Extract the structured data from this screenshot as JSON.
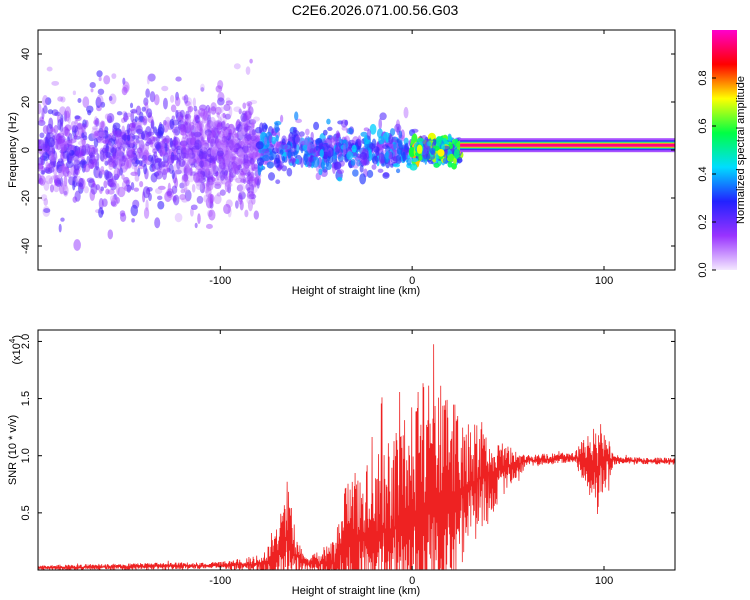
{
  "title": "C2E6.2026.071.00.56.G03",
  "chart_data": [
    {
      "type": "heatmap",
      "xlabel": "Height of straight line (km)",
      "ylabel": "Frequency (Hz)",
      "xlim": [
        -195,
        137
      ],
      "ylim": [
        -50,
        50
      ],
      "xticks": [
        -100,
        0,
        100
      ],
      "xtick_labels": [
        "-100",
        "0",
        "100"
      ],
      "yticks": [
        -40,
        -20,
        0,
        20,
        40
      ],
      "ytick_labels": [
        "-40",
        "-20",
        "0",
        "20",
        "40"
      ],
      "colorbar": {
        "label": "Normalized spectral amplitude",
        "range": [
          0,
          1
        ],
        "ticks": [
          0.0,
          0.2,
          0.4,
          0.6,
          0.8
        ],
        "tick_labels": [
          "0.0",
          "0.2",
          "0.4",
          "0.6",
          "0.8"
        ],
        "colors": [
          "#f4e8ff",
          "#9933ff",
          "#2222ff",
          "#00ddff",
          "#00ff44",
          "#ffff00",
          "#ff0000",
          "#ff00cc"
        ]
      },
      "regions": [
        {
          "x": [
            -195,
            -120
          ],
          "description_amplitude": 0.15,
          "freq_spread": 50
        },
        {
          "x": [
            -120,
            -80
          ],
          "description_amplitude": 0.12,
          "freq_spread": 45
        },
        {
          "x": [
            -80,
            0
          ],
          "description_amplitude": 0.25,
          "freq_spread": 20
        },
        {
          "x": [
            0,
            25
          ],
          "description_amplitude": 0.45,
          "freq_spread": 10
        },
        {
          "x": [
            25,
            137
          ],
          "description_amplitude": 0.95,
          "freq_spread": 2,
          "center_freq": 2
        }
      ]
    },
    {
      "type": "line",
      "xlabel": "Height of straight line (km)",
      "ylabel": "SNR (10 * v/v)",
      "yscale_label": "(x10",
      "yscale_exp": "4",
      "xlim": [
        -195,
        137
      ],
      "ylim": [
        0,
        2.1
      ],
      "xticks": [
        -100,
        0,
        100
      ],
      "xtick_labels": [
        "-100",
        "0",
        "100"
      ],
      "yticks": [
        0.5,
        1.0,
        1.5,
        2.0
      ],
      "ytick_labels": [
        "0.5",
        "1.0",
        "1.5",
        "2.0"
      ],
      "color": "#ee2222",
      "envelope": {
        "x": [
          -195,
          -150,
          -100,
          -80,
          -72,
          -67,
          -65,
          -62,
          -55,
          -40,
          -35,
          -20,
          -5,
          5,
          15,
          25,
          40,
          50,
          60,
          85,
          92,
          96,
          100,
          105,
          110,
          137
        ],
        "base": [
          0.02,
          0.03,
          0.04,
          0.05,
          0.08,
          0.2,
          0.3,
          0.15,
          0.05,
          0.06,
          0.22,
          0.3,
          0.4,
          0.45,
          0.55,
          0.7,
          0.85,
          0.9,
          0.96,
          0.98,
          0.95,
          0.9,
          0.95,
          0.97,
          0.96,
          0.95
        ],
        "amplitude": [
          0.02,
          0.03,
          0.03,
          0.08,
          0.2,
          0.4,
          0.5,
          0.3,
          0.05,
          0.2,
          0.6,
          0.7,
          0.9,
          1.2,
          1.1,
          0.7,
          0.4,
          0.2,
          0.05,
          0.05,
          0.3,
          0.45,
          0.3,
          0.05,
          0.03,
          0.03
        ]
      }
    }
  ]
}
